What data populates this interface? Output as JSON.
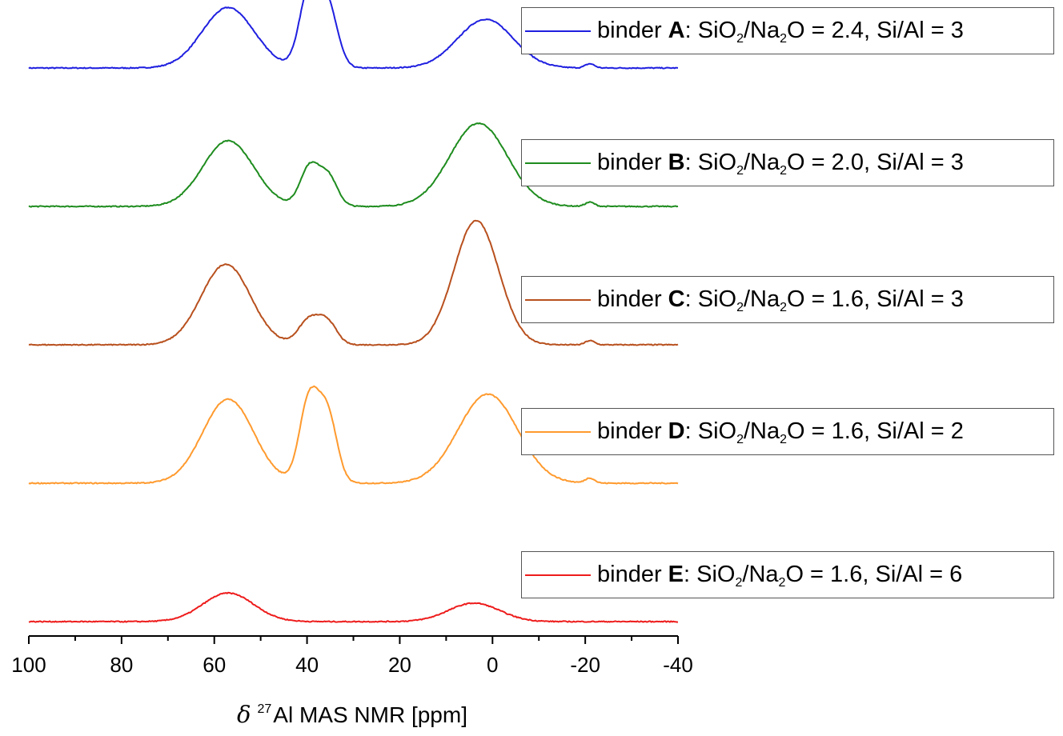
{
  "chart_data": {
    "type": "line",
    "title": "",
    "xlabel": {
      "symbol": "δ",
      "isotope_mass": "27",
      "text": "Al MAS NMR [ppm]"
    },
    "ylabel": "",
    "xlim": [
      100,
      -40
    ],
    "x_ticks": [
      100,
      80,
      60,
      40,
      20,
      0,
      -20,
      -40
    ],
    "x_tick_labels": [
      "100",
      "80",
      "60",
      "40",
      "20",
      "0",
      "-20",
      "-40"
    ],
    "grid": false,
    "legend_placement": "right",
    "series": [
      {
        "name": "binder A",
        "legend": {
          "prefix": "binder ",
          "letter": "A",
          "ratio1": "SiO",
          "sub1": "2",
          "ratio2": "/Na",
          "sub2": "2",
          "ratio3": "O = 2.4, Si/Al = 3"
        },
        "color": "#1f1fe0",
        "baseline_offset": 4.0,
        "peaks": [
          {
            "center": 57.0,
            "height": 0.72,
            "width": 5.6
          },
          {
            "center": 39.5,
            "height": 0.92,
            "width": 2.1
          },
          {
            "center": 35.5,
            "height": 0.72,
            "width": 2.1
          },
          {
            "center": 1.5,
            "height": 0.58,
            "width": 6.0
          },
          {
            "center": -21.0,
            "height": 0.05,
            "width": 1.0
          }
        ]
      },
      {
        "name": "binder B",
        "legend": {
          "prefix": "binder ",
          "letter": "B",
          "ratio1": "SiO",
          "sub1": "2",
          "ratio2": "/Na",
          "sub2": "2",
          "ratio3": "O = 2.0, Si/Al = 3"
        },
        "color": "#1e8c1e",
        "baseline_offset": 3.0,
        "peaks": [
          {
            "center": 57.0,
            "height": 0.78,
            "width": 5.5
          },
          {
            "center": 39.5,
            "height": 0.46,
            "width": 2.0
          },
          {
            "center": 35.5,
            "height": 0.36,
            "width": 2.0
          },
          {
            "center": 3.0,
            "height": 0.99,
            "width": 6.2
          },
          {
            "center": -21.0,
            "height": 0.05,
            "width": 1.0
          }
        ]
      },
      {
        "name": "binder C",
        "legend": {
          "prefix": "binder ",
          "letter": "C",
          "ratio1": "SiO",
          "sub1": "2",
          "ratio2": "/Na",
          "sub2": "2",
          "ratio3": "O = 1.6, Si/Al = 3"
        },
        "color": "#b8501e",
        "baseline_offset": 2.0,
        "peaks": [
          {
            "center": 57.5,
            "height": 0.96,
            "width": 5.3
          },
          {
            "center": 39.5,
            "height": 0.3,
            "width": 2.3
          },
          {
            "center": 35.5,
            "height": 0.25,
            "width": 2.0
          },
          {
            "center": 3.5,
            "height": 1.48,
            "width": 4.8
          },
          {
            "center": -21.0,
            "height": 0.05,
            "width": 1.0
          }
        ]
      },
      {
        "name": "binder D",
        "legend": {
          "prefix": "binder ",
          "letter": "D",
          "ratio1": "SiO",
          "sub1": "2",
          "ratio2": "/Na",
          "sub2": "2",
          "ratio3": "O = 1.6, Si/Al = 2"
        },
        "color": "#ff9a2e",
        "baseline_offset": 1.0,
        "peaks": [
          {
            "center": 57.0,
            "height": 1.0,
            "width": 5.5
          },
          {
            "center": 39.5,
            "height": 1.0,
            "width": 2.1
          },
          {
            "center": 35.5,
            "height": 0.78,
            "width": 2.0
          },
          {
            "center": 1.0,
            "height": 1.06,
            "width": 6.4
          },
          {
            "center": -21.0,
            "height": 0.06,
            "width": 1.0
          }
        ]
      },
      {
        "name": "binder E",
        "legend": {
          "prefix": "binder ",
          "letter": "E",
          "ratio1": "SiO",
          "sub1": "2",
          "ratio2": "/Na",
          "sub2": "2",
          "ratio3": "O = 1.6, Si/Al = 6"
        },
        "color": "#ee1c1c",
        "baseline_offset": 0.0,
        "peaks": [
          {
            "center": 57.0,
            "height": 0.34,
            "width": 5.5
          },
          {
            "center": 4.0,
            "height": 0.22,
            "width": 5.5
          }
        ]
      }
    ]
  }
}
